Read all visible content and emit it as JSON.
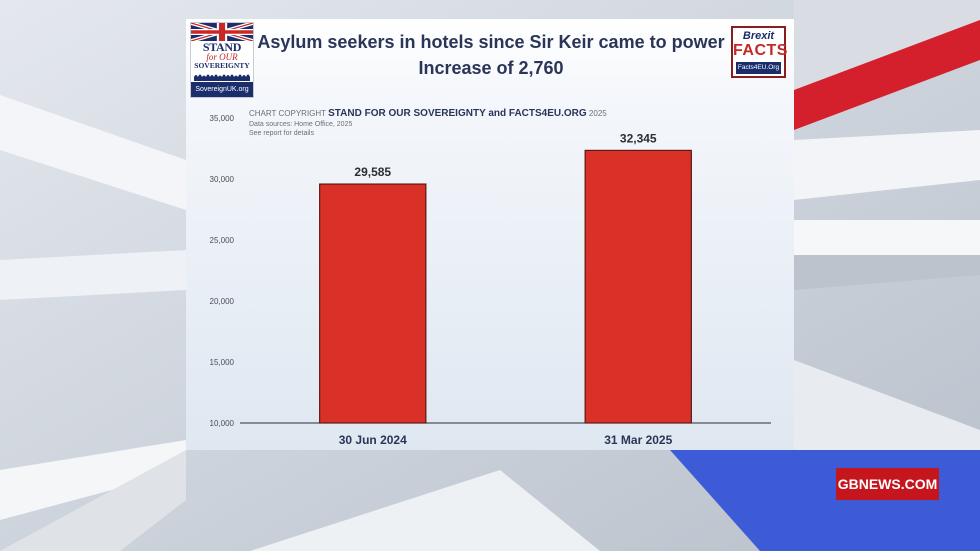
{
  "chart_data": {
    "type": "bar",
    "title": "Asylum seekers in hotels since Sir Keir came to power",
    "subtitle": "Increase of 2,760",
    "categories": [
      "30 Jun 2024",
      "31 Mar 2025"
    ],
    "values": [
      29585,
      32345
    ],
    "data_labels": [
      "29,585",
      "32,345"
    ],
    "yticks": [
      "10,000",
      "15,000",
      "20,000",
      "25,000",
      "30,000",
      "35,000"
    ],
    "ylim": [
      10000,
      35000
    ],
    "bar_color": "#d93127",
    "grid": false,
    "copyright_prefix": "CHART COPYRIGHT",
    "copyright_owner": "STAND FOR OUR SOVEREIGNTY and  FACTS4EU.ORG",
    "copyright_year": "2025",
    "source": "Data sources: Home Office, 2025",
    "note": "See report for details"
  },
  "logos": {
    "left": {
      "line1": "STAND",
      "line2": "for OUR",
      "line3": "SOVEREIGNTY",
      "url": "SovereignUK.org"
    },
    "right": {
      "line1": "Brexit",
      "line2": "FACTS",
      "url": "Facts4EU.Org"
    }
  },
  "ticker": "GBNEWS.COM",
  "colors": {
    "accent_red": "#c4161c",
    "navy": "#1b2e6b",
    "bar": "#d93127"
  }
}
